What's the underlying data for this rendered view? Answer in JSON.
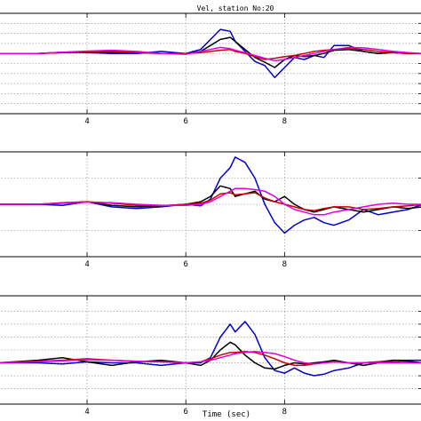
{
  "title": "Vel, station No:20",
  "xlabel": "Time (sec)",
  "chart_data": [
    {
      "type": "line",
      "title": "Vel, station No:20",
      "xlim": [
        2.2,
        10.8
      ],
      "xticks": [
        4,
        6,
        8
      ],
      "xtick_labels": [
        "4",
        "6",
        "8"
      ],
      "ylim": [
        -1.5,
        1.0
      ],
      "yticks": [
        -1.25,
        -1.0,
        -0.75,
        -0.5,
        -0.25,
        0,
        0.25,
        0.5,
        0.75
      ],
      "grid": true,
      "series": [
        {
          "color": "#0000cc",
          "x": [
            2.2,
            3.0,
            3.5,
            4.0,
            4.5,
            5.0,
            5.5,
            6.0,
            6.3,
            6.5,
            6.7,
            6.9,
            7.0,
            7.2,
            7.4,
            7.6,
            7.8,
            8.0,
            8.2,
            8.4,
            8.6,
            8.8,
            9.0,
            9.3,
            9.6,
            9.9,
            10.2,
            10.5,
            10.8
          ],
          "y": [
            0.0,
            0.0,
            0.03,
            0.02,
            0.0,
            0.0,
            0.05,
            0.0,
            0.1,
            0.35,
            0.6,
            0.55,
            0.3,
            0.05,
            -0.2,
            -0.3,
            -0.6,
            -0.35,
            -0.1,
            -0.15,
            -0.05,
            -0.1,
            0.2,
            0.2,
            0.05,
            0.0,
            0.05,
            0.0,
            0.0
          ]
        },
        {
          "color": "#000000",
          "x": [
            2.2,
            3.0,
            3.5,
            4.0,
            4.5,
            5.0,
            5.5,
            6.0,
            6.3,
            6.5,
            6.7,
            6.9,
            7.0,
            7.2,
            7.4,
            7.6,
            7.8,
            8.0,
            8.2,
            8.4,
            8.6,
            8.8,
            9.0,
            9.3,
            9.6,
            9.9,
            10.2,
            10.5,
            10.8
          ],
          "y": [
            0.0,
            0.0,
            0.02,
            0.03,
            0.02,
            0.02,
            0.0,
            0.0,
            0.05,
            0.2,
            0.35,
            0.4,
            0.3,
            0.1,
            -0.1,
            -0.22,
            -0.35,
            -0.15,
            -0.05,
            -0.08,
            -0.05,
            0.0,
            0.08,
            0.1,
            0.05,
            0.0,
            0.02,
            0.0,
            0.0
          ]
        },
        {
          "color": "#cc0000",
          "x": [
            2.2,
            3.0,
            3.5,
            4.0,
            4.5,
            5.0,
            5.5,
            6.0,
            6.3,
            6.5,
            6.7,
            6.9,
            7.0,
            7.2,
            7.4,
            7.6,
            7.8,
            8.0,
            8.2,
            8.4,
            8.6,
            8.8,
            9.0,
            9.3,
            9.6,
            9.9,
            10.2,
            10.5,
            10.8
          ],
          "y": [
            0.0,
            0.0,
            0.02,
            0.04,
            0.05,
            0.03,
            0.0,
            0.0,
            0.02,
            0.05,
            0.08,
            0.1,
            0.05,
            0.0,
            -0.08,
            -0.15,
            -0.12,
            -0.08,
            -0.05,
            0.0,
            0.05,
            0.08,
            0.1,
            0.12,
            0.1,
            0.05,
            0.02,
            0.0,
            0.0
          ]
        },
        {
          "color": "#dd00dd",
          "x": [
            2.2,
            3.0,
            3.5,
            4.0,
            4.5,
            5.0,
            5.5,
            6.0,
            6.3,
            6.5,
            6.7,
            6.9,
            7.0,
            7.2,
            7.4,
            7.6,
            7.8,
            8.0,
            8.2,
            8.4,
            8.6,
            8.8,
            9.0,
            9.3,
            9.6,
            9.9,
            10.2,
            10.5,
            10.8
          ],
          "y": [
            0.0,
            0.0,
            0.03,
            0.06,
            0.08,
            0.05,
            0.0,
            -0.02,
            0.05,
            0.1,
            0.15,
            0.12,
            0.08,
            0.02,
            -0.05,
            -0.12,
            -0.18,
            -0.15,
            -0.1,
            -0.05,
            0.0,
            0.05,
            0.1,
            0.15,
            0.14,
            0.1,
            0.05,
            0.02,
            0.0
          ]
        }
      ]
    },
    {
      "type": "line",
      "xlim": [
        2.2,
        10.8
      ],
      "xticks": [
        4,
        6,
        8
      ],
      "xtick_labels": [
        "4",
        "6",
        "8"
      ],
      "ylim": [
        -1.0,
        1.0
      ],
      "yticks": [
        -0.5,
        0,
        0.5
      ],
      "grid": true,
      "series": [
        {
          "color": "#0000cc",
          "x": [
            2.2,
            3.0,
            3.5,
            4.0,
            4.5,
            5.0,
            5.5,
            6.0,
            6.3,
            6.5,
            6.7,
            6.9,
            7.0,
            7.2,
            7.4,
            7.6,
            7.8,
            8.0,
            8.2,
            8.4,
            8.6,
            8.8,
            9.0,
            9.3,
            9.6,
            9.9,
            10.2,
            10.5,
            10.8
          ],
          "y": [
            0.0,
            0.0,
            -0.02,
            0.05,
            -0.05,
            -0.08,
            -0.05,
            0.0,
            -0.03,
            0.1,
            0.5,
            0.7,
            0.9,
            0.8,
            0.5,
            0.0,
            -0.35,
            -0.55,
            -0.4,
            -0.3,
            -0.25,
            -0.35,
            -0.4,
            -0.3,
            -0.1,
            -0.2,
            -0.15,
            -0.1,
            0.0
          ]
        },
        {
          "color": "#000000",
          "x": [
            2.2,
            3.0,
            3.5,
            4.0,
            4.5,
            5.0,
            5.5,
            6.0,
            6.3,
            6.5,
            6.7,
            6.9,
            7.0,
            7.2,
            7.4,
            7.6,
            7.8,
            8.0,
            8.2,
            8.4,
            8.6,
            8.8,
            9.0,
            9.3,
            9.6,
            9.9,
            10.2,
            10.5,
            10.8
          ],
          "y": [
            0.0,
            0.0,
            0.02,
            0.05,
            -0.02,
            -0.05,
            -0.03,
            0.0,
            0.05,
            0.15,
            0.35,
            0.3,
            0.15,
            0.2,
            0.25,
            0.1,
            0.05,
            0.15,
            0.0,
            -0.1,
            -0.15,
            -0.1,
            -0.05,
            -0.1,
            -0.15,
            -0.1,
            -0.05,
            -0.08,
            -0.05
          ]
        },
        {
          "color": "#cc0000",
          "x": [
            2.2,
            3.0,
            3.5,
            4.0,
            4.5,
            5.0,
            5.5,
            6.0,
            6.3,
            6.5,
            6.7,
            6.9,
            7.0,
            7.2,
            7.4,
            7.6,
            7.8,
            8.0,
            8.2,
            8.4,
            8.6,
            8.8,
            9.0,
            9.3,
            9.6,
            9.9,
            10.2,
            10.5,
            10.8
          ],
          "y": [
            0.0,
            0.0,
            0.03,
            0.05,
            0.02,
            -0.02,
            -0.03,
            0.0,
            0.02,
            0.08,
            0.2,
            0.22,
            0.18,
            0.2,
            0.22,
            0.12,
            0.05,
            0.0,
            -0.05,
            -0.1,
            -0.12,
            -0.08,
            -0.05,
            -0.05,
            -0.1,
            -0.08,
            -0.05,
            -0.03,
            0.0
          ]
        },
        {
          "color": "#dd00dd",
          "x": [
            2.2,
            3.0,
            3.5,
            4.0,
            4.5,
            5.0,
            5.5,
            6.0,
            6.3,
            6.5,
            6.7,
            6.9,
            7.0,
            7.2,
            7.4,
            7.6,
            7.8,
            8.0,
            8.2,
            8.4,
            8.6,
            8.8,
            9.0,
            9.3,
            9.6,
            9.9,
            10.2,
            10.5,
            10.8
          ],
          "y": [
            0.0,
            0.0,
            0.02,
            0.04,
            0.03,
            0.0,
            -0.02,
            -0.02,
            0.0,
            0.05,
            0.15,
            0.25,
            0.3,
            0.3,
            0.28,
            0.25,
            0.15,
            0.0,
            -0.1,
            -0.15,
            -0.2,
            -0.2,
            -0.15,
            -0.1,
            -0.05,
            0.0,
            0.02,
            0.0,
            0.0
          ]
        }
      ]
    },
    {
      "type": "line",
      "xlim": [
        2.2,
        10.8
      ],
      "xticks": [
        4,
        6,
        8
      ],
      "xtick_labels": [
        "4",
        "6",
        "8"
      ],
      "ylim": [
        -0.8,
        1.3
      ],
      "yticks": [
        -0.5,
        -0.25,
        0,
        0.25,
        0.5,
        0.75,
        1.0
      ],
      "grid": true,
      "series": [
        {
          "color": "#0000cc",
          "x": [
            2.2,
            3.0,
            3.5,
            4.0,
            4.5,
            5.0,
            5.5,
            6.0,
            6.3,
            6.5,
            6.7,
            6.9,
            7.0,
            7.2,
            7.4,
            7.6,
            7.8,
            8.0,
            8.2,
            8.4,
            8.6,
            8.8,
            9.0,
            9.3,
            9.6,
            9.9,
            10.2,
            10.5,
            10.8
          ],
          "y": [
            0.0,
            0.0,
            -0.02,
            0.02,
            0.0,
            0.0,
            -0.05,
            0.0,
            0.0,
            0.1,
            0.5,
            0.75,
            0.6,
            0.8,
            0.55,
            0.1,
            -0.15,
            -0.2,
            -0.1,
            -0.2,
            -0.25,
            -0.22,
            -0.15,
            -0.1,
            0.0,
            0.02,
            0.05,
            0.05,
            0.05
          ]
        },
        {
          "color": "#000000",
          "x": [
            2.2,
            3.0,
            3.5,
            4.0,
            4.5,
            5.0,
            5.5,
            6.0,
            6.3,
            6.5,
            6.7,
            6.9,
            7.0,
            7.2,
            7.4,
            7.6,
            7.8,
            8.0,
            8.2,
            8.4,
            8.6,
            8.8,
            9.0,
            9.3,
            9.6,
            9.9,
            10.2,
            10.5,
            10.8
          ],
          "y": [
            0.0,
            0.05,
            0.1,
            0.02,
            -0.05,
            0.02,
            0.05,
            0.0,
            -0.05,
            0.05,
            0.25,
            0.4,
            0.35,
            0.15,
            0.0,
            -0.1,
            -0.12,
            -0.05,
            0.0,
            -0.02,
            0.0,
            0.02,
            0.05,
            0.0,
            -0.05,
            0.0,
            0.05,
            0.03,
            0.0
          ]
        },
        {
          "color": "#cc0000",
          "x": [
            2.2,
            3.0,
            3.5,
            4.0,
            4.5,
            5.0,
            5.5,
            6.0,
            6.3,
            6.5,
            6.7,
            6.9,
            7.0,
            7.2,
            7.4,
            7.6,
            7.8,
            8.0,
            8.2,
            8.4,
            8.6,
            8.8,
            9.0,
            9.3,
            9.6,
            9.9,
            10.2,
            10.5,
            10.8
          ],
          "y": [
            0.0,
            0.03,
            0.05,
            0.08,
            0.05,
            0.03,
            0.02,
            0.0,
            0.02,
            0.08,
            0.15,
            0.2,
            0.2,
            0.22,
            0.2,
            0.15,
            0.08,
            0.0,
            -0.05,
            -0.05,
            -0.02,
            0.0,
            0.02,
            0.0,
            0.0,
            0.02,
            0.02,
            0.0,
            0.0
          ]
        },
        {
          "color": "#dd00dd",
          "x": [
            2.2,
            3.0,
            3.5,
            4.0,
            4.5,
            5.0,
            5.5,
            6.0,
            6.3,
            6.5,
            6.7,
            6.9,
            7.0,
            7.2,
            7.4,
            7.6,
            7.8,
            8.0,
            8.2,
            8.4,
            8.6,
            8.8,
            9.0,
            9.3,
            9.6,
            9.9,
            10.2,
            10.5,
            10.8
          ],
          "y": [
            0.0,
            0.02,
            0.04,
            0.06,
            0.05,
            0.03,
            0.02,
            0.0,
            0.02,
            0.05,
            0.1,
            0.15,
            0.18,
            0.2,
            0.22,
            0.2,
            0.18,
            0.12,
            0.05,
            0.0,
            -0.02,
            0.0,
            0.02,
            0.0,
            0.0,
            0.0,
            0.0,
            0.0,
            0.0
          ]
        }
      ]
    }
  ]
}
